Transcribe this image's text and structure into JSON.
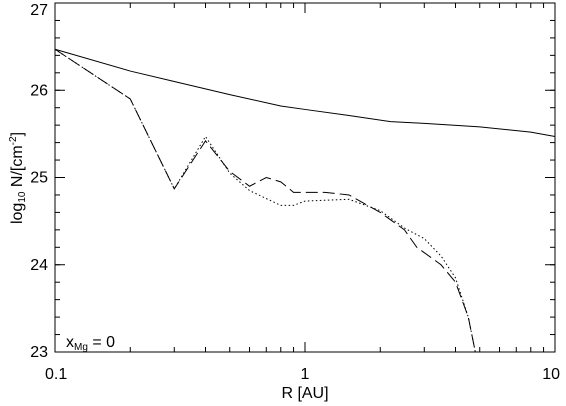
{
  "chart_data": {
    "type": "line",
    "x_label": "R [AU]",
    "y_label": {
      "base": "log",
      "subscript": "10",
      "text": " N/[cm",
      "superscript": "-2",
      "close": "]"
    },
    "annotation": {
      "symbol": "x",
      "subscript": "Mg",
      "text": " = 0"
    },
    "xscale": "log",
    "xlim": [
      0.1,
      10
    ],
    "xticks": [
      0.1,
      1,
      10
    ],
    "ylim": [
      23,
      27
    ],
    "yticks": [
      23,
      24,
      25,
      26,
      27
    ],
    "series": [
      {
        "style": "solid",
        "color": "#000000",
        "x": [
          0.1,
          0.2,
          0.3,
          0.5,
          0.8,
          1,
          1.5,
          2.2,
          3,
          5,
          8,
          10
        ],
        "values": [
          26.47,
          26.22,
          26.1,
          25.95,
          25.82,
          25.78,
          25.71,
          25.64,
          25.62,
          25.58,
          25.52,
          25.47
        ]
      },
      {
        "style": "dashed",
        "color": "#000000",
        "x": [
          0.1,
          0.2,
          0.3,
          0.4,
          0.5,
          0.6,
          0.7,
          0.8,
          0.9,
          1.2,
          1.5,
          2,
          2.5,
          2.8,
          3.5,
          4,
          4.5,
          4.8
        ],
        "values": [
          26.47,
          25.9,
          24.87,
          25.42,
          25.07,
          24.9,
          25.0,
          24.95,
          24.83,
          24.83,
          24.8,
          24.6,
          24.4,
          24.2,
          24.0,
          23.8,
          23.4,
          23.0
        ]
      },
      {
        "style": "dotted",
        "color": "#000000",
        "x": [
          0.1,
          0.2,
          0.3,
          0.4,
          0.5,
          0.6,
          0.8,
          0.9,
          1,
          1.5,
          2,
          2.5,
          3,
          3.5,
          4,
          4.5,
          4.8
        ],
        "values": [
          26.47,
          25.9,
          24.87,
          25.47,
          25.05,
          24.85,
          24.68,
          24.68,
          24.73,
          24.75,
          24.62,
          24.42,
          24.3,
          24.1,
          23.85,
          23.4,
          23.0
        ]
      }
    ]
  }
}
